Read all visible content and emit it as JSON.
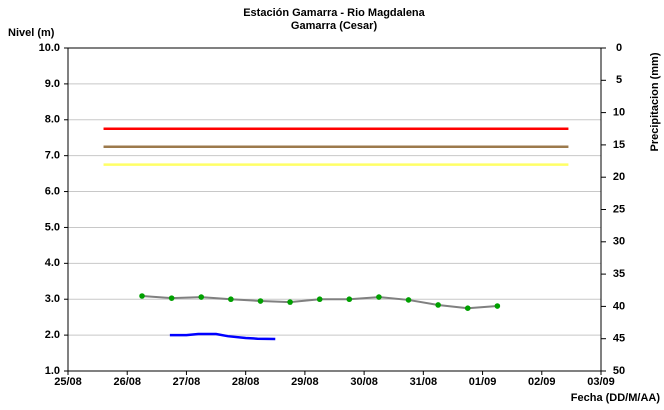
{
  "chart_data": {
    "type": "line",
    "title": "Estación Gamarra - Rio Magdalena",
    "subtitle": "Gamarra (Cesar)",
    "ylabel": "Nivel (m)",
    "y2label": "Precipitacion (mm)",
    "xlabel": "Fecha (DD/M/AA)",
    "xlim": [
      0,
      9
    ],
    "xticks": [
      {
        "value": 0,
        "label": "25/08"
      },
      {
        "value": 1,
        "label": "26/08"
      },
      {
        "value": 2,
        "label": "27/08"
      },
      {
        "value": 3,
        "label": "28/08"
      },
      {
        "value": 4,
        "label": "29/08"
      },
      {
        "value": 5,
        "label": "30/08"
      },
      {
        "value": 6,
        "label": "31/08"
      },
      {
        "value": 7,
        "label": "01/09"
      },
      {
        "value": 8,
        "label": "02/09"
      },
      {
        "value": 9,
        "label": "03/09"
      }
    ],
    "ylim": [
      1,
      10
    ],
    "yticks": [
      {
        "value": 1,
        "label": "1.0"
      },
      {
        "value": 2,
        "label": "2.0"
      },
      {
        "value": 3,
        "label": "3.0"
      },
      {
        "value": 4,
        "label": "4.0"
      },
      {
        "value": 5,
        "label": "5.0"
      },
      {
        "value": 6,
        "label": "6.0"
      },
      {
        "value": 7,
        "label": "7.0"
      },
      {
        "value": 8,
        "label": "8.0"
      },
      {
        "value": 9,
        "label": "9.0"
      },
      {
        "value": 10,
        "label": "10.0"
      }
    ],
    "y2lim": [
      0,
      50
    ],
    "y2_inverted": true,
    "y2ticks": [
      0,
      5,
      10,
      15,
      20,
      25,
      30,
      35,
      40,
      45,
      50
    ],
    "grid": true,
    "series": [
      {
        "color": "#ff0000",
        "x": [
          0.6,
          8.45
        ],
        "values": [
          7.75,
          7.75
        ]
      },
      {
        "color": "#9c7a4c",
        "x": [
          0.6,
          8.45
        ],
        "values": [
          7.25,
          7.25
        ]
      },
      {
        "color": "#ffff66",
        "x": [
          0.6,
          8.45
        ],
        "values": [
          6.75,
          6.75
        ]
      },
      {
        "color": "#808080",
        "marker_color": "#00a000",
        "x": [
          1.25,
          1.75,
          2.25,
          2.75,
          3.25,
          3.75,
          4.25,
          4.75,
          5.25,
          5.75,
          6.25,
          6.75,
          7.25
        ],
        "values": [
          3.09,
          3.03,
          3.06,
          3.0,
          2.95,
          2.92,
          3.0,
          3.0,
          3.06,
          2.98,
          2.84,
          2.75,
          2.81
        ]
      },
      {
        "color": "#0000ff",
        "x": [
          1.72,
          2.0,
          2.2,
          2.5,
          2.7,
          3.0,
          3.2,
          3.5
        ],
        "values": [
          2.0,
          2.0,
          2.03,
          2.03,
          1.97,
          1.92,
          1.9,
          1.89
        ]
      }
    ]
  }
}
